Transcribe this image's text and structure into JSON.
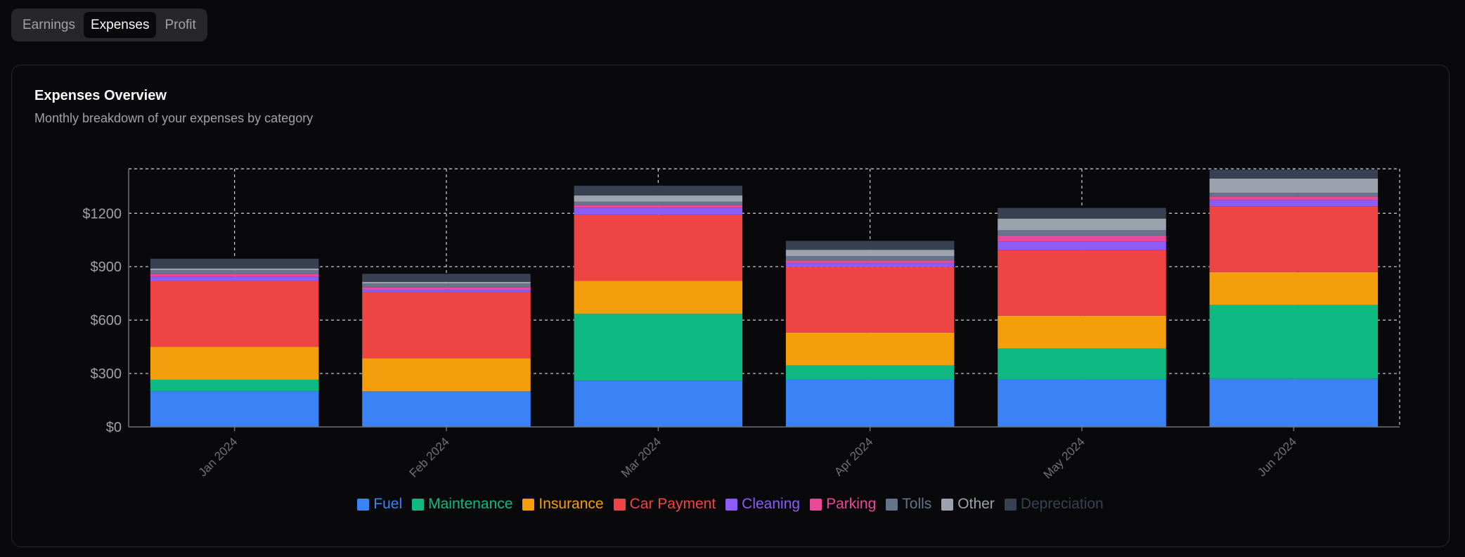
{
  "tabs": [
    {
      "label": "Earnings",
      "active": false
    },
    {
      "label": "Expenses",
      "active": true
    },
    {
      "label": "Profit",
      "active": false
    }
  ],
  "card": {
    "title": "Expenses Overview",
    "subtitle": "Monthly breakdown of your expenses by category"
  },
  "chart_data": {
    "type": "bar",
    "stacked": true,
    "title": "Expenses Overview",
    "xlabel": "",
    "ylabel": "",
    "ylim": [
      0,
      1450
    ],
    "yticks": [
      0,
      300,
      600,
      900,
      1200
    ],
    "ytick_labels": [
      "$0",
      "$300",
      "$600",
      "$900",
      "$1200"
    ],
    "grid": true,
    "legend_position": "bottom-center",
    "categories": [
      "Jan 2024",
      "Feb 2024",
      "Mar 2024",
      "Apr 2024",
      "May 2024",
      "Jun 2024"
    ],
    "series": [
      {
        "name": "Fuel",
        "color": "#3b82f6",
        "values": [
          200,
          200,
          260,
          265,
          265,
          270
        ]
      },
      {
        "name": "Maintenance",
        "color": "#10b981",
        "values": [
          65,
          0,
          375,
          80,
          175,
          415
        ]
      },
      {
        "name": "Insurance",
        "color": "#f59e0b",
        "values": [
          185,
          185,
          185,
          185,
          185,
          185
        ]
      },
      {
        "name": "Car Payment",
        "color": "#ef4444",
        "values": [
          370,
          370,
          370,
          370,
          370,
          370
        ]
      },
      {
        "name": "Cleaning",
        "color": "#8b5cf6",
        "values": [
          25,
          15,
          40,
          20,
          45,
          35
        ]
      },
      {
        "name": "Parking",
        "color": "#ec4899",
        "values": [
          15,
          15,
          15,
          15,
          35,
          20
        ]
      },
      {
        "name": "Tolls",
        "color": "#64748b",
        "values": [
          20,
          20,
          20,
          25,
          30,
          20
        ]
      },
      {
        "name": "Other",
        "color": "#9ca3af",
        "values": [
          10,
          10,
          35,
          35,
          65,
          80
        ]
      },
      {
        "name": "Depreciation",
        "color": "#374151",
        "values": [
          55,
          45,
          55,
          50,
          60,
          50
        ]
      }
    ]
  }
}
